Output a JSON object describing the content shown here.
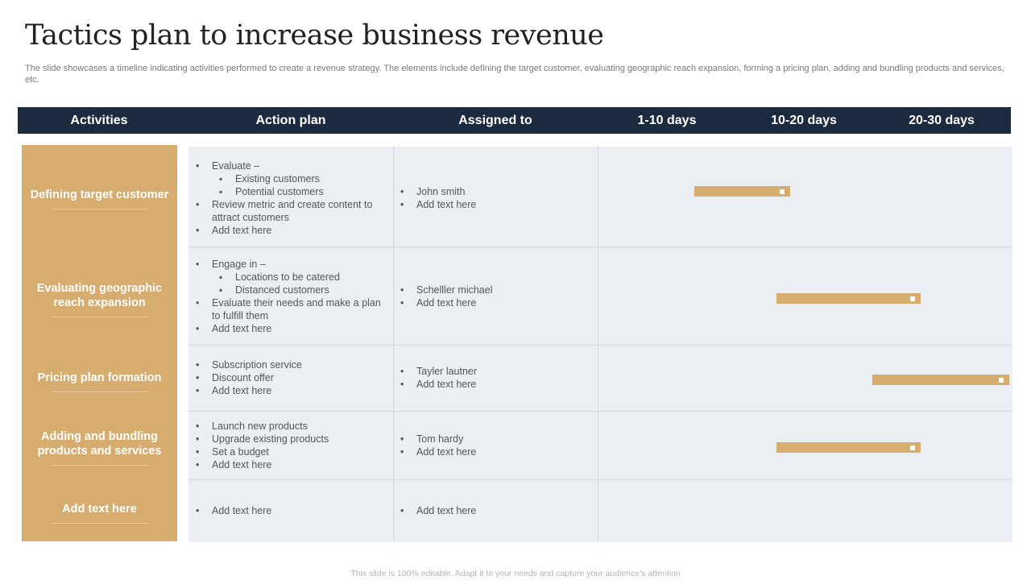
{
  "title": "Tactics plan to increase business revenue",
  "subtitle": "The slide showcases a timeline indicating activities performed to create a revenue strategy.  The elements include defining the target customer, evaluating geographic reach expansion, forming a pricing plan, adding and bundling products and services, etc.",
  "header": {
    "activities": "Activities",
    "action_plan": "Action plan",
    "assigned_to": "Assigned to",
    "period_1": "1-10 days",
    "period_2": "10-20 days",
    "period_3": "20-30 days"
  },
  "colors": {
    "header_bg": "#1c2a3f",
    "accent": "#d6ac6f",
    "table_bg": "#ebeff4"
  },
  "rows": [
    {
      "activity": "Defining target customer",
      "plan": [
        "Evaluate –",
        "Existing customers",
        "Potential customers",
        "Review  metric and create content to attract customers",
        "Add text here"
      ],
      "assigned": [
        "John smith",
        "Add text here"
      ],
      "timeline": {
        "start_day": 7,
        "end_day": 14
      }
    },
    {
      "activity": "Evaluating geographic reach expansion",
      "plan": [
        "Engage in –",
        "Locations to be catered",
        "Distanced customers",
        "Evaluate  their needs and make a plan to fulfill them",
        "Add text here"
      ],
      "assigned": [
        "Schelller michael",
        "Add text here"
      ],
      "timeline": {
        "start_day": 13,
        "end_day": 23.5
      }
    },
    {
      "activity": "Pricing plan formation",
      "plan": [
        "Subscription service",
        "Discount offer",
        "Add text here"
      ],
      "assigned": [
        "Tayler lautner",
        "Add text here"
      ],
      "timeline": {
        "start_day": 20,
        "end_day": 30
      }
    },
    {
      "activity": "Adding  and bundling products and services",
      "plan": [
        "Launch new products",
        "Upgrade  existing products",
        "Set a budget",
        "Add text here"
      ],
      "assigned": [
        "Tom hardy",
        "Add text here"
      ],
      "timeline": {
        "start_day": 13,
        "end_day": 23.5
      }
    },
    {
      "activity": "Add  text here",
      "plan": [
        "Add text here"
      ],
      "assigned": [
        "Add text here"
      ]
    }
  ],
  "footer": "This slide is 100% editable.  Adapt it to your needs and capture your audience’s attention"
}
